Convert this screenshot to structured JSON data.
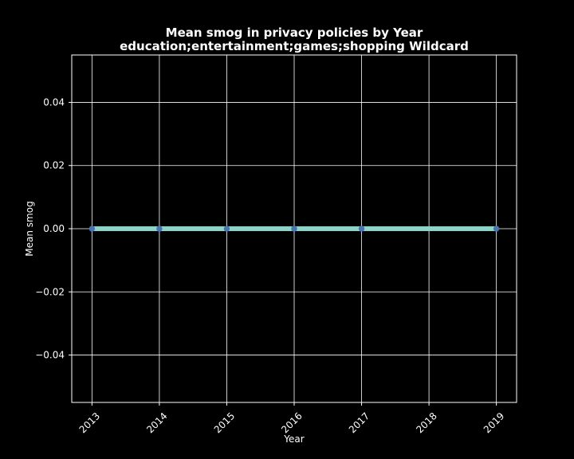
{
  "chart_data": {
    "type": "line",
    "title": "Mean smog in privacy policies by Year",
    "subtitle": "education;entertainment;games;shopping Wildcard",
    "xlabel": "Year",
    "ylabel": "Mean smog",
    "x": [
      2013,
      2014,
      2015,
      2016,
      2017,
      2019
    ],
    "x_ticks": [
      2013,
      2014,
      2015,
      2016,
      2017,
      2018,
      2019
    ],
    "xlim": [
      2012.7,
      2019.3
    ],
    "y_ticks": [
      -0.04,
      -0.02,
      0.0,
      0.02,
      0.04
    ],
    "y_tick_labels": [
      "−0.04",
      "−0.02",
      "0.00",
      "0.02",
      "0.04"
    ],
    "ylim": [
      -0.055,
      0.055
    ],
    "grid": true,
    "series": [
      {
        "values": [
          0,
          0,
          0,
          0,
          0,
          0
        ],
        "line_color": "#8dd3c7",
        "marker_color": "#4c72b0"
      }
    ],
    "background_color": "#000000",
    "foreground_color": "#ffffff"
  }
}
